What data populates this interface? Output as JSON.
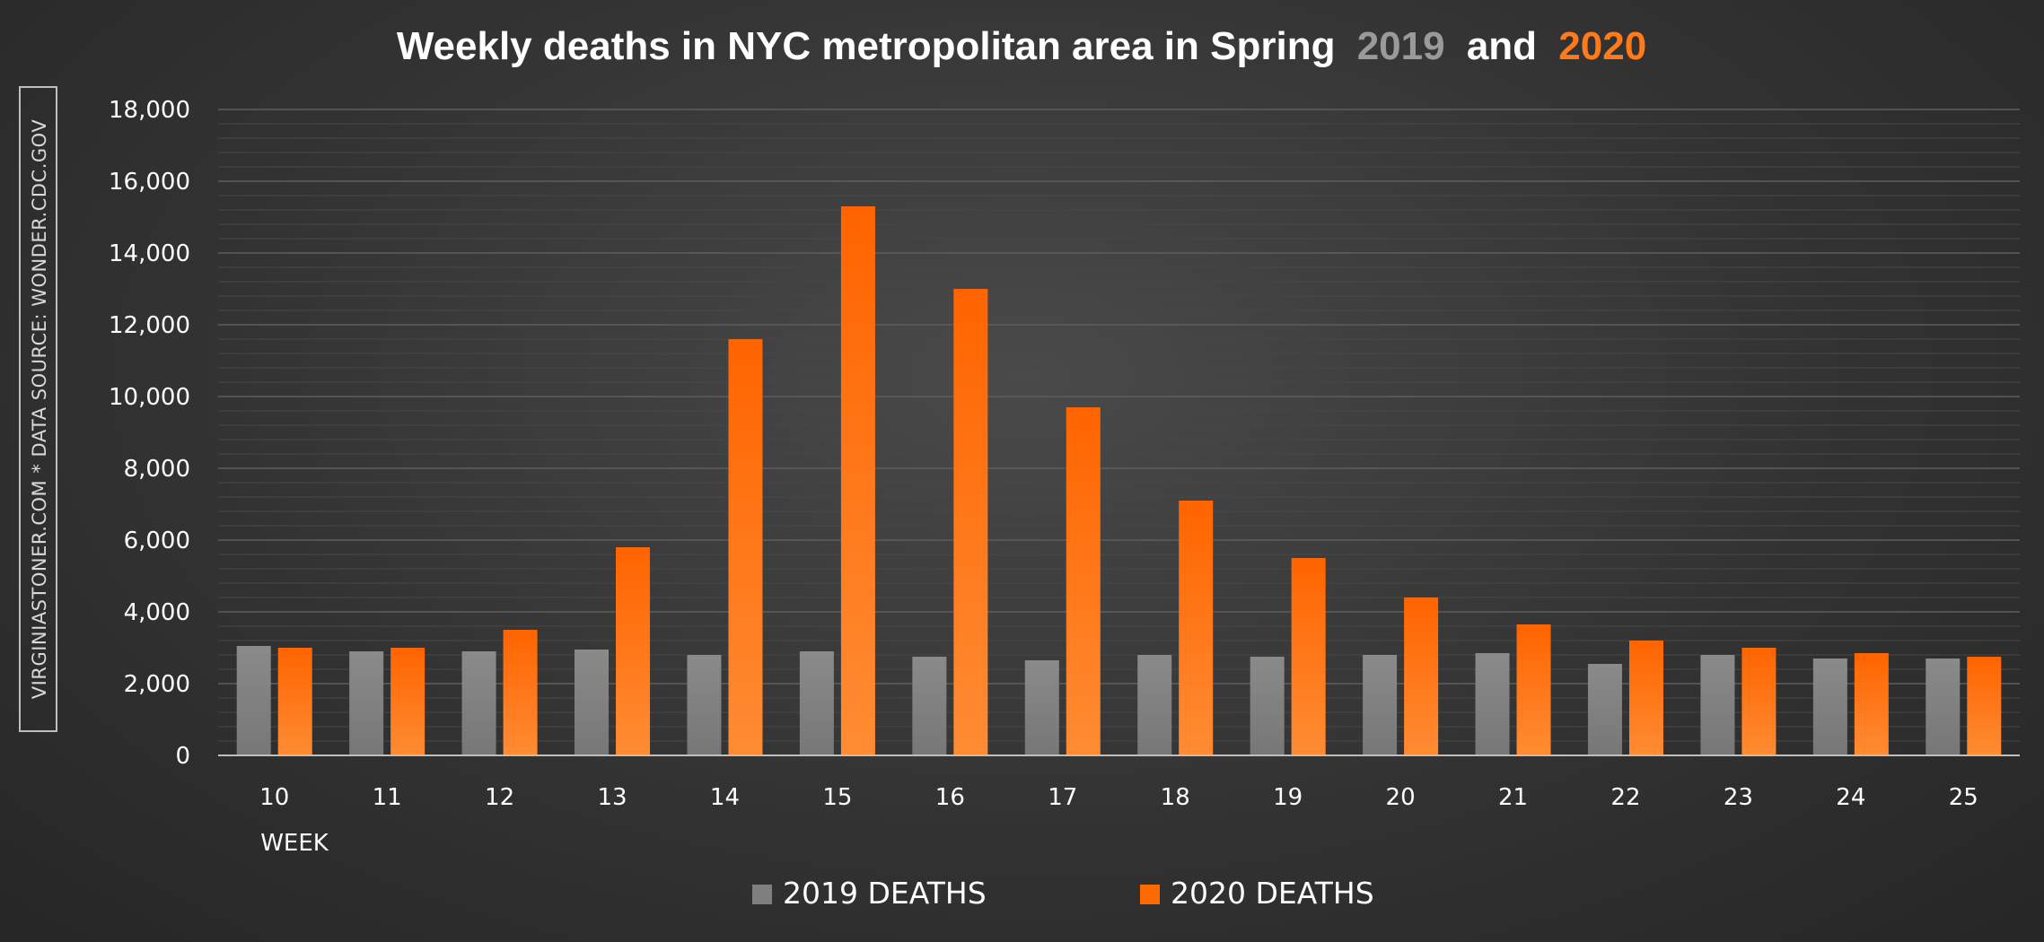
{
  "chart_data": {
    "type": "bar",
    "title": {
      "main": "Weekly deaths in NYC metropolitan area in Spring",
      "year1": "2019",
      "conjunction": "and",
      "year2": "2020"
    },
    "side_note": "VIRGINIASTONER.COM * DATA SOURCE: WONDER.CDC.GOV",
    "xlabel": "WEEK",
    "ylabel": "",
    "ylim": [
      0,
      18000
    ],
    "yticks": [
      0,
      2000,
      4000,
      6000,
      8000,
      10000,
      12000,
      14000,
      16000,
      18000
    ],
    "ytick_labels": [
      "0",
      "2,000",
      "4,000",
      "6,000",
      "8,000",
      "10,000",
      "12,000",
      "14,000",
      "16,000",
      "18,000"
    ],
    "grid": true,
    "legend_position": "bottom",
    "categories": [
      "10",
      "11",
      "12",
      "13",
      "14",
      "15",
      "16",
      "17",
      "18",
      "19",
      "20",
      "21",
      "22",
      "23",
      "24",
      "25"
    ],
    "series": [
      {
        "name": "2019 DEATHS",
        "color": "#7f7f7f",
        "values": [
          3050,
          2900,
          2900,
          2950,
          2800,
          2900,
          2750,
          2650,
          2800,
          2750,
          2800,
          2850,
          2550,
          2800,
          2700,
          2700
        ]
      },
      {
        "name": "2020 DEATHS",
        "color": "#ff6a00",
        "values": [
          3000,
          3000,
          3500,
          5800,
          11600,
          15300,
          13000,
          9700,
          7100,
          5500,
          4400,
          3650,
          3200,
          3000,
          2850,
          2750
        ]
      }
    ],
    "colors": {
      "title": "#ffffff",
      "year1": "#9a9a9a",
      "year2": "#ff7a1a",
      "grid": "#5a5a5a",
      "axis": "#bfbfbf"
    }
  }
}
